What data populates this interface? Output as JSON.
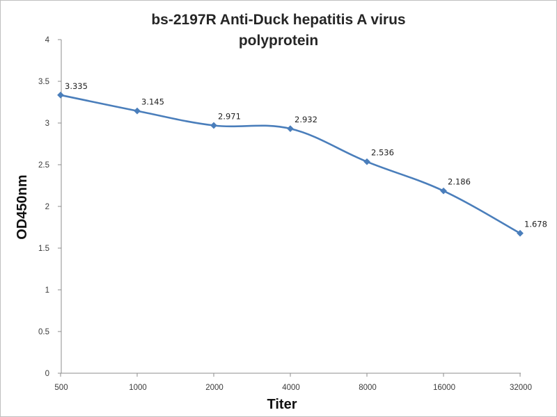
{
  "chart_data": {
    "type": "line",
    "title_lines": [
      "bs-2197R Anti-Duck hepatitis A virus",
      "polyprotein"
    ],
    "xlabel": "Titer",
    "ylabel": "OD450nm",
    "categories": [
      "500",
      "1000",
      "2000",
      "4000",
      "8000",
      "16000",
      "32000"
    ],
    "series": [
      {
        "values": [
          3.335,
          3.145,
          2.971,
          2.932,
          2.536,
          2.186,
          1.678
        ],
        "data_labels": [
          "3.335",
          "3.145",
          "2.971",
          "2.932",
          "2.536",
          "2.186",
          "1.678"
        ]
      }
    ],
    "ylim": [
      0,
      4
    ],
    "yticks": [
      "0",
      "0.5",
      "1",
      "1.5",
      "2",
      "2.5",
      "3",
      "3.5",
      "4"
    ],
    "grid": false,
    "legend": "none",
    "line_color": "#4a7ebb",
    "marker": "diamond",
    "smooth": true
  }
}
